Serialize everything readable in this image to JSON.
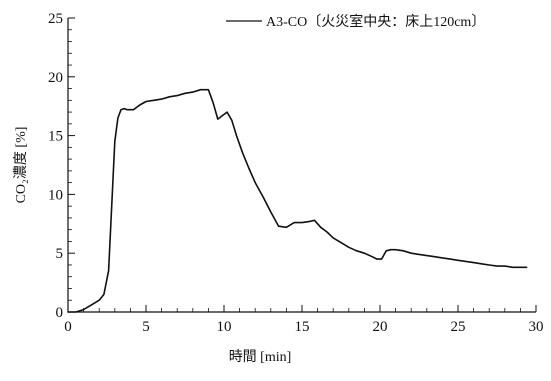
{
  "chart_data": {
    "type": "line",
    "xlabel": "時間 [min]",
    "ylabel": "CO₂濃度 [%]",
    "xlim": [
      0,
      30
    ],
    "ylim": [
      0,
      25
    ],
    "xticks": [
      0,
      5,
      10,
      15,
      20,
      25,
      30
    ],
    "yticks": [
      0,
      5,
      10,
      15,
      20,
      25
    ],
    "x_tick_labels": [
      "0",
      "5",
      "10",
      "15",
      "20",
      "25",
      "30"
    ],
    "y_tick_labels": [
      "0",
      "5",
      "10",
      "15",
      "20",
      "25"
    ],
    "grid": false,
    "legend_position": "top-right",
    "series": [
      {
        "name": "A3-CO〔火災室中央：床上120cm〕",
        "color": "#111111",
        "x": [
          0,
          0.5,
          1,
          1.5,
          2,
          2.3,
          2.6,
          2.8,
          3.0,
          3.2,
          3.4,
          3.6,
          3.8,
          4.2,
          4.6,
          5.0,
          5.5,
          6,
          6.5,
          7,
          7.5,
          8,
          8.5,
          9.0,
          9.3,
          9.6,
          9.9,
          10.2,
          10.5,
          10.8,
          11.2,
          11.6,
          12,
          12.5,
          13,
          13.5,
          14,
          14.5,
          15,
          15.5,
          15.8,
          16.2,
          16.6,
          17,
          17.5,
          18,
          18.5,
          19,
          19.5,
          19.8,
          20.1,
          20.4,
          20.7,
          21.0,
          21.5,
          22,
          22.5,
          23,
          23.5,
          24,
          24.5,
          25,
          25.5,
          26,
          26.5,
          27,
          27.5,
          28,
          28.5,
          29,
          29.4
        ],
        "y": [
          0,
          0,
          0.2,
          0.6,
          1.0,
          1.5,
          3.5,
          9.0,
          14.5,
          16.5,
          17.2,
          17.3,
          17.2,
          17.2,
          17.6,
          17.9,
          18.0,
          18.1,
          18.3,
          18.4,
          18.6,
          18.7,
          18.9,
          18.9,
          17.8,
          16.4,
          16.7,
          17.0,
          16.3,
          15.0,
          13.5,
          12.2,
          11.0,
          9.8,
          8.5,
          7.3,
          7.2,
          7.6,
          7.6,
          7.7,
          7.8,
          7.2,
          6.8,
          6.3,
          5.9,
          5.5,
          5.2,
          5.0,
          4.7,
          4.5,
          4.5,
          5.2,
          5.3,
          5.3,
          5.2,
          5.0,
          4.9,
          4.8,
          4.7,
          4.6,
          4.5,
          4.4,
          4.3,
          4.2,
          4.1,
          4.0,
          3.9,
          3.9,
          3.8,
          3.8,
          3.8
        ]
      }
    ]
  }
}
